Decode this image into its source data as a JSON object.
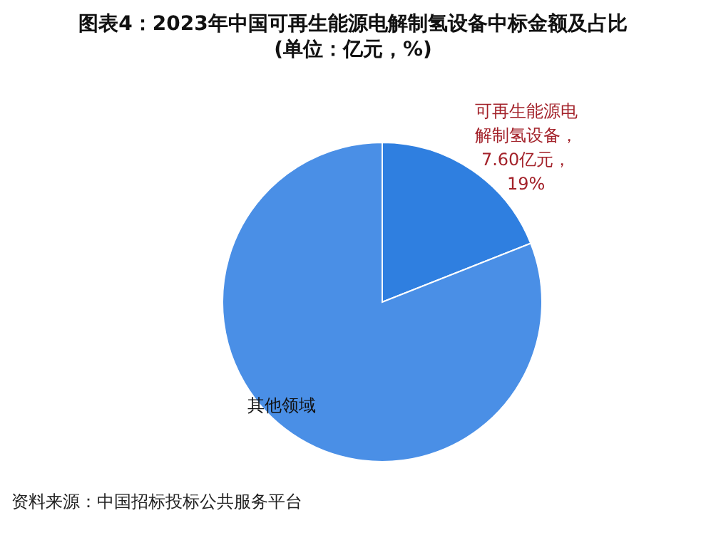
{
  "chart_data": {
    "type": "pie",
    "title": "图表4：2023年中国可再生能源电解制氢设备中标金额及占比",
    "subtitle": "(单位：亿元，%)",
    "categories": [
      "可再生能源电解制氢设备",
      "其他领域"
    ],
    "values": [
      19,
      81
    ],
    "colors": [
      "#2f7fe0",
      "#4a8fe6"
    ],
    "value_labels": [
      "，7.60亿元，19%",
      null
    ],
    "annotations": [
      "资料来源：中国招标投标公共服务平台"
    ]
  }
}
